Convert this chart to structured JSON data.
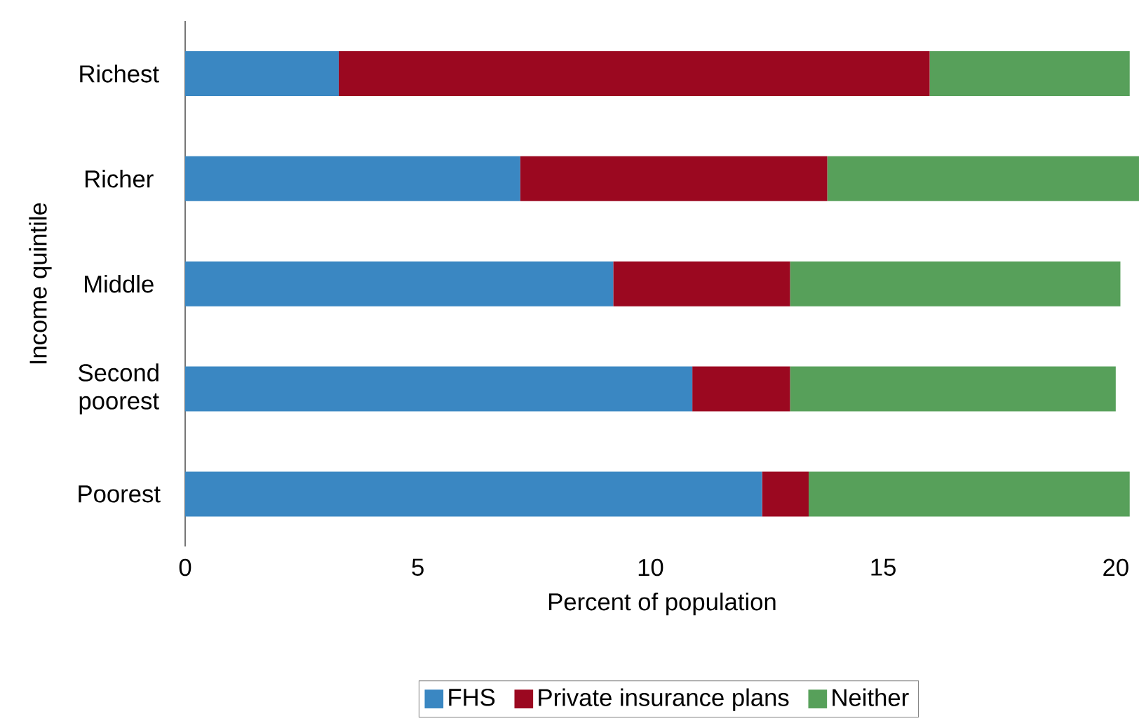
{
  "chart_data": {
    "type": "bar",
    "orientation": "horizontal",
    "stacked": true,
    "categories": [
      "Richest",
      "Richer",
      "Middle",
      "Second poorest",
      "Poorest"
    ],
    "series": [
      {
        "name": "FHS",
        "color": "#3a87c2",
        "values": [
          3.3,
          7.2,
          9.2,
          10.9,
          12.4
        ]
      },
      {
        "name": "Private insurance plans",
        "color": "#9b0820",
        "values": [
          12.7,
          6.6,
          3.8,
          2.1,
          1.0
        ]
      },
      {
        "name": "Neither",
        "color": "#57a05a",
        "values": [
          4.3,
          6.7,
          7.1,
          7.0,
          6.9
        ]
      }
    ],
    "xlim": [
      0,
      20.5
    ],
    "xticks": [
      0,
      5,
      10,
      15,
      20
    ],
    "xlabel": "Percent of population",
    "ylabel": "Income quintile",
    "legend": "bottom",
    "grid": false
  }
}
